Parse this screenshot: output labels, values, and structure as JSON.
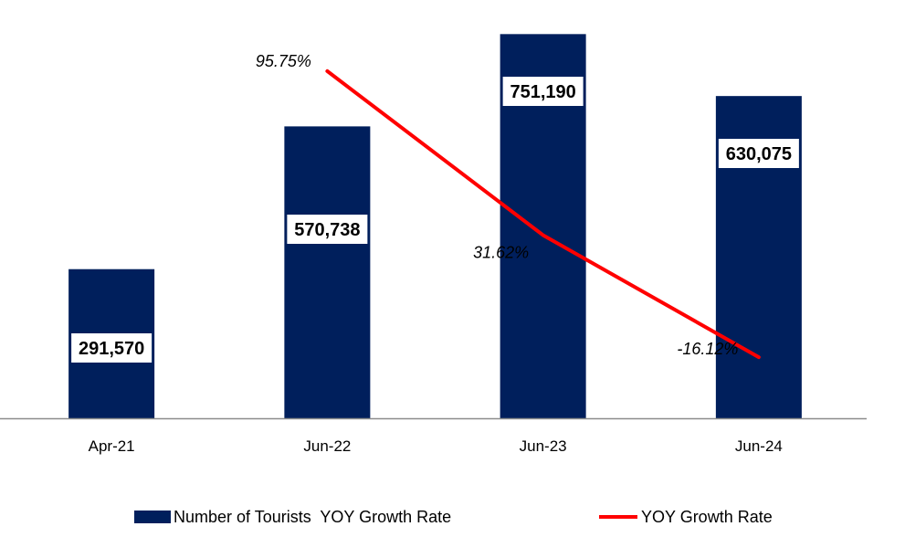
{
  "chart_data": {
    "type": "bar",
    "title": "",
    "xlabel": "",
    "ylabel": "",
    "ylim": [
      0,
      800000
    ],
    "y2lim": [
      -40,
      120
    ],
    "grid": false,
    "legend_position": "bottom",
    "categories": [
      "Apr-21",
      "Jun-22",
      "Jun-23",
      "Jun-24"
    ],
    "series": [
      {
        "name": "Number of Tourists  YOY Growth Rate",
        "type": "bar",
        "color": "#001f5c",
        "values": [
          291570,
          570738,
          751190,
          630075
        ],
        "labels": [
          "291,570",
          "570,738",
          "751,190",
          "630,075"
        ]
      },
      {
        "name": "YOY Growth Rate",
        "type": "line",
        "color": "#ff0000",
        "x": [
          "Jun-22",
          "Jun-23",
          "Jun-24"
        ],
        "values": [
          95.75,
          31.62,
          -16.12
        ],
        "labels": [
          "95.75%",
          "31.62%",
          "-16.12%"
        ]
      }
    ]
  }
}
